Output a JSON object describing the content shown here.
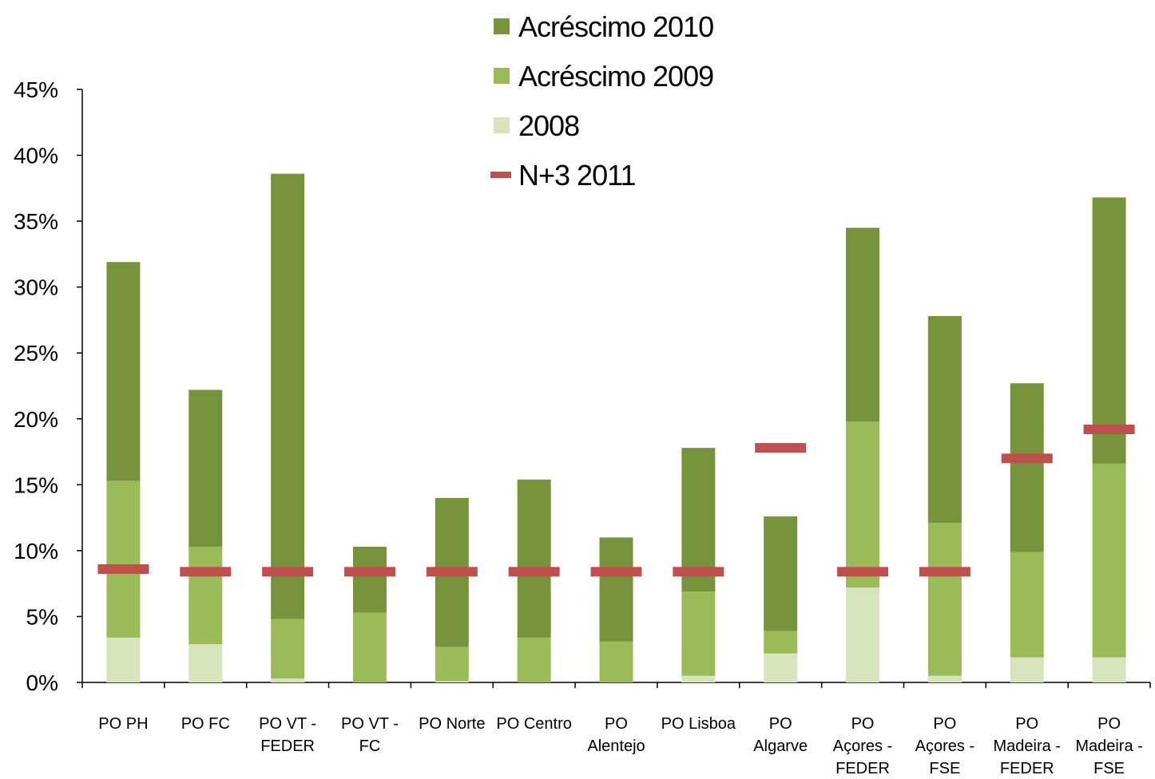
{
  "chart_data": {
    "type": "bar",
    "stacked": true,
    "categories": [
      [
        "PO PH"
      ],
      [
        "PO FC"
      ],
      [
        "PO VT -",
        "FEDER"
      ],
      [
        "PO VT -",
        "FC"
      ],
      [
        "PO Norte"
      ],
      [
        "PO Centro"
      ],
      [
        "PO",
        "Alentejo"
      ],
      [
        "PO Lisboa"
      ],
      [
        "PO",
        "Algarve"
      ],
      [
        "PO",
        "Açores -",
        "FEDER"
      ],
      [
        "PO",
        "Açores -",
        "FSE"
      ],
      [
        "PO",
        "Madeira -",
        "FEDER"
      ],
      [
        "PO",
        "Madeira -",
        "FSE"
      ]
    ],
    "series": [
      {
        "name": "2008",
        "color": "#d7e4bc",
        "values": [
          3.4,
          2.9,
          0.3,
          0.0,
          0.1,
          0.0,
          0.0,
          0.5,
          2.2,
          7.2,
          0.5,
          1.9,
          1.9
        ]
      },
      {
        "name": "Acréscimo 2009",
        "color": "#9bbb59",
        "values": [
          11.9,
          7.4,
          4.5,
          5.3,
          2.6,
          3.4,
          3.1,
          6.4,
          1.7,
          12.6,
          11.6,
          8.0,
          14.7
        ]
      },
      {
        "name": "Acréscimo 2010",
        "color": "#77933c",
        "values": [
          16.6,
          11.9,
          33.8,
          5.0,
          11.3,
          12.0,
          7.9,
          10.9,
          8.7,
          14.7,
          15.7,
          12.8,
          20.2
        ]
      }
    ],
    "markers": {
      "name": "N+3 2011",
      "color": "#c0504d",
      "values": [
        8.6,
        8.4,
        8.4,
        8.4,
        8.4,
        8.4,
        8.4,
        8.4,
        17.8,
        8.4,
        8.4,
        17.0,
        19.2
      ]
    },
    "legend_order": [
      "Acréscimo 2010",
      "Acréscimo 2009",
      "2008",
      "N+3 2011"
    ],
    "y_ticks": [
      "0%",
      "5%",
      "10%",
      "15%",
      "20%",
      "25%",
      "30%",
      "35%",
      "40%",
      "45%"
    ],
    "ylim": [
      0,
      45
    ],
    "y_unit": "%",
    "legend_position": "top-center",
    "grid": false
  }
}
